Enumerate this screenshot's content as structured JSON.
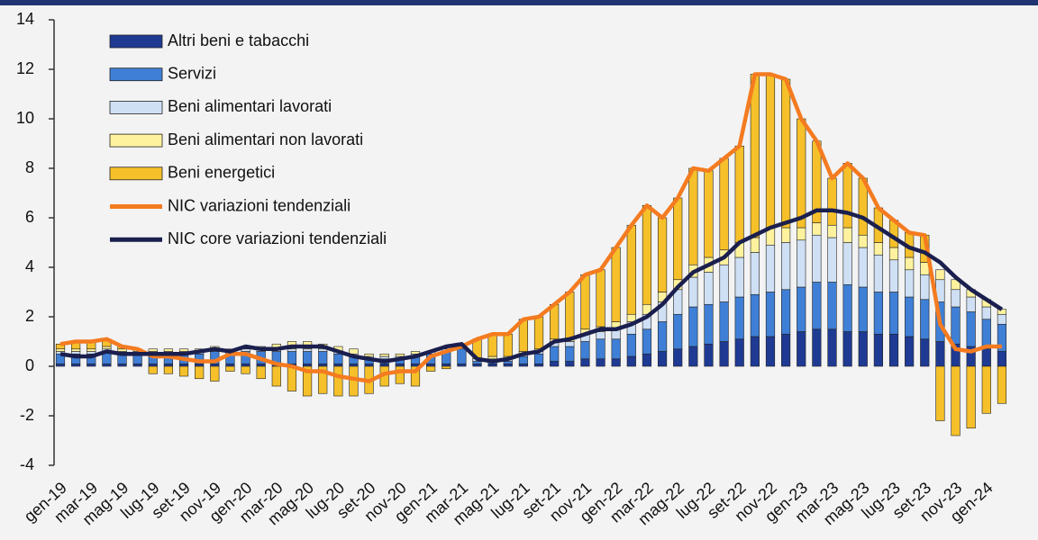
{
  "chart_data": {
    "type": "bar",
    "stacked": true,
    "categories": [
      "gen-19",
      null,
      "mar-19",
      null,
      "mag-19",
      null,
      "lug-19",
      null,
      "set-19",
      null,
      "nov-19",
      null,
      "gen-20",
      null,
      "mar-20",
      null,
      "mag-20",
      null,
      "lug-20",
      null,
      "set-20",
      null,
      "nov-20",
      null,
      "gen-21",
      null,
      "mar-21",
      null,
      "mag-21",
      null,
      "lug-21",
      null,
      "set-21",
      null,
      "nov-21",
      null,
      "gen-22",
      null,
      "mar-22",
      null,
      "mag-22",
      null,
      "lug-22",
      null,
      "set-22",
      null,
      "nov-22",
      null,
      "gen-23",
      null,
      "mar-23",
      null,
      "mag-23",
      null,
      "lug-23",
      null,
      "set-23",
      null,
      "nov-23",
      null,
      "gen-24",
      null
    ],
    "ylim": [
      -4,
      14
    ],
    "yticks": [
      -4,
      -2,
      0,
      2,
      4,
      6,
      8,
      10,
      12,
      14
    ],
    "series": [
      {
        "name": "Altri beni e tabacchi",
        "color": "#1f3a93",
        "values": [
          0.1,
          0.1,
          0.1,
          0.1,
          0.1,
          0.1,
          0.1,
          0.1,
          0.1,
          0.1,
          0.1,
          0.1,
          0.1,
          0.1,
          0.1,
          0.1,
          0.1,
          0.1,
          0.1,
          0.1,
          0.1,
          0.1,
          0.1,
          0.1,
          0.1,
          0.1,
          0.1,
          0.1,
          0.1,
          0.1,
          0.1,
          0.1,
          0.2,
          0.2,
          0.3,
          0.3,
          0.3,
          0.4,
          0.5,
          0.6,
          0.7,
          0.8,
          0.9,
          1.0,
          1.1,
          1.2,
          1.2,
          1.3,
          1.4,
          1.5,
          1.5,
          1.4,
          1.4,
          1.3,
          1.3,
          1.2,
          1.1,
          1.0,
          0.9,
          0.8,
          0.7,
          0.6
        ]
      },
      {
        "name": "Servizi",
        "color": "#3f7fd6",
        "values": [
          0.4,
          0.4,
          0.4,
          0.5,
          0.4,
          0.4,
          0.4,
          0.4,
          0.4,
          0.4,
          0.5,
          0.4,
          0.5,
          0.5,
          0.5,
          0.5,
          0.5,
          0.5,
          0.4,
          0.3,
          0.2,
          0.2,
          0.2,
          0.3,
          0.4,
          0.5,
          0.6,
          0.1,
          0.1,
          0.1,
          0.3,
          0.4,
          0.6,
          0.6,
          0.7,
          0.8,
          0.8,
          0.9,
          1.0,
          1.2,
          1.4,
          1.6,
          1.6,
          1.6,
          1.7,
          1.7,
          1.8,
          1.8,
          1.8,
          1.9,
          1.9,
          1.9,
          1.8,
          1.7,
          1.7,
          1.6,
          1.6,
          1.6,
          1.5,
          1.4,
          1.2,
          1.1
        ]
      },
      {
        "name": "Beni alimentari lavorati",
        "color": "#cfe0f5",
        "values": [
          0.1,
          0.1,
          0.1,
          0.1,
          0.1,
          0.1,
          0.1,
          0.1,
          0.1,
          0.1,
          0.1,
          0.1,
          0.1,
          0.1,
          0.1,
          0.1,
          0.1,
          0.1,
          0.1,
          0.1,
          0.1,
          0.1,
          0.1,
          0.1,
          0.1,
          0.1,
          0.1,
          0.1,
          0.1,
          0.1,
          0.1,
          0.1,
          0.2,
          0.2,
          0.3,
          0.3,
          0.4,
          0.5,
          0.6,
          0.8,
          1.0,
          1.2,
          1.3,
          1.5,
          1.6,
          1.7,
          1.9,
          1.9,
          1.9,
          1.9,
          1.8,
          1.7,
          1.6,
          1.5,
          1.3,
          1.1,
          1.0,
          0.9,
          0.7,
          0.6,
          0.5,
          0.4
        ]
      },
      {
        "name": "Beni alimentari non lavorati",
        "color": "#fff29e",
        "values": [
          0.1,
          0.1,
          0.1,
          0.1,
          0.1,
          0.1,
          0.1,
          0.1,
          0.1,
          0.1,
          0.1,
          0.1,
          0.1,
          0.1,
          0.2,
          0.3,
          0.3,
          0.2,
          0.2,
          0.2,
          0.1,
          0.1,
          0.1,
          0.1,
          0.0,
          0.0,
          0.0,
          0.0,
          0.1,
          0.1,
          0.1,
          0.1,
          0.1,
          0.1,
          0.2,
          0.2,
          0.3,
          0.3,
          0.4,
          0.4,
          0.4,
          0.5,
          0.6,
          0.6,
          0.6,
          0.6,
          0.7,
          0.6,
          0.5,
          0.5,
          0.5,
          0.6,
          0.5,
          0.5,
          0.5,
          0.5,
          0.5,
          0.4,
          0.4,
          0.3,
          0.3,
          0.2
        ]
      },
      {
        "name": "Beni energetici",
        "color": "#f5c02a",
        "values": [
          0.2,
          0.3,
          0.3,
          0.3,
          0.1,
          0.0,
          -0.3,
          -0.3,
          -0.4,
          -0.5,
          -0.6,
          -0.2,
          -0.3,
          -0.5,
          -0.8,
          -1.0,
          -1.2,
          -1.1,
          -1.2,
          -1.2,
          -1.1,
          -0.8,
          -0.7,
          -0.8,
          -0.2,
          -0.1,
          0.0,
          0.8,
          0.9,
          0.9,
          1.3,
          1.3,
          1.4,
          1.9,
          2.2,
          2.3,
          3.0,
          3.6,
          4.0,
          3.0,
          3.3,
          3.9,
          3.5,
          3.7,
          3.9,
          6.6,
          6.2,
          6.0,
          4.4,
          3.3,
          1.9,
          2.6,
          2.3,
          1.4,
          1.1,
          1.0,
          1.1,
          -2.2,
          -2.8,
          -2.5,
          -1.9,
          -1.5
        ]
      },
      {
        "name": "NIC variazioni tendenziali",
        "type": "line",
        "color": "#f47b20",
        "values": [
          0.9,
          1.0,
          1.0,
          1.1,
          0.8,
          0.7,
          0.4,
          0.4,
          0.3,
          0.2,
          0.2,
          0.5,
          0.5,
          0.3,
          0.1,
          0.0,
          -0.2,
          -0.2,
          -0.4,
          -0.5,
          -0.6,
          -0.3,
          -0.2,
          -0.2,
          0.4,
          0.6,
          0.8,
          1.1,
          1.3,
          1.3,
          1.9,
          2.0,
          2.5,
          3.0,
          3.7,
          3.9,
          4.8,
          5.7,
          6.5,
          6.0,
          6.8,
          8.0,
          7.9,
          8.4,
          8.9,
          11.8,
          11.8,
          11.6,
          10.0,
          9.1,
          7.6,
          8.2,
          7.6,
          6.4,
          5.9,
          5.4,
          5.3,
          1.7,
          0.7,
          0.6,
          0.8,
          0.8
        ]
      },
      {
        "name": "NIC core variazioni tendenziali",
        "type": "line",
        "color": "#1a1f4e",
        "values": [
          0.5,
          0.4,
          0.4,
          0.6,
          0.5,
          0.5,
          0.5,
          0.5,
          0.5,
          0.6,
          0.7,
          0.6,
          0.8,
          0.7,
          0.7,
          0.8,
          0.8,
          0.8,
          0.6,
          0.4,
          0.3,
          0.2,
          0.3,
          0.4,
          0.6,
          0.8,
          0.9,
          0.3,
          0.2,
          0.3,
          0.5,
          0.6,
          1.0,
          1.1,
          1.3,
          1.5,
          1.5,
          1.7,
          2.0,
          2.5,
          3.2,
          3.8,
          4.1,
          4.4,
          5.0,
          5.3,
          5.6,
          5.8,
          6.0,
          6.3,
          6.3,
          6.2,
          6.0,
          5.6,
          5.2,
          4.8,
          4.6,
          4.2,
          3.6,
          3.1,
          2.7,
          2.3
        ]
      }
    ]
  }
}
